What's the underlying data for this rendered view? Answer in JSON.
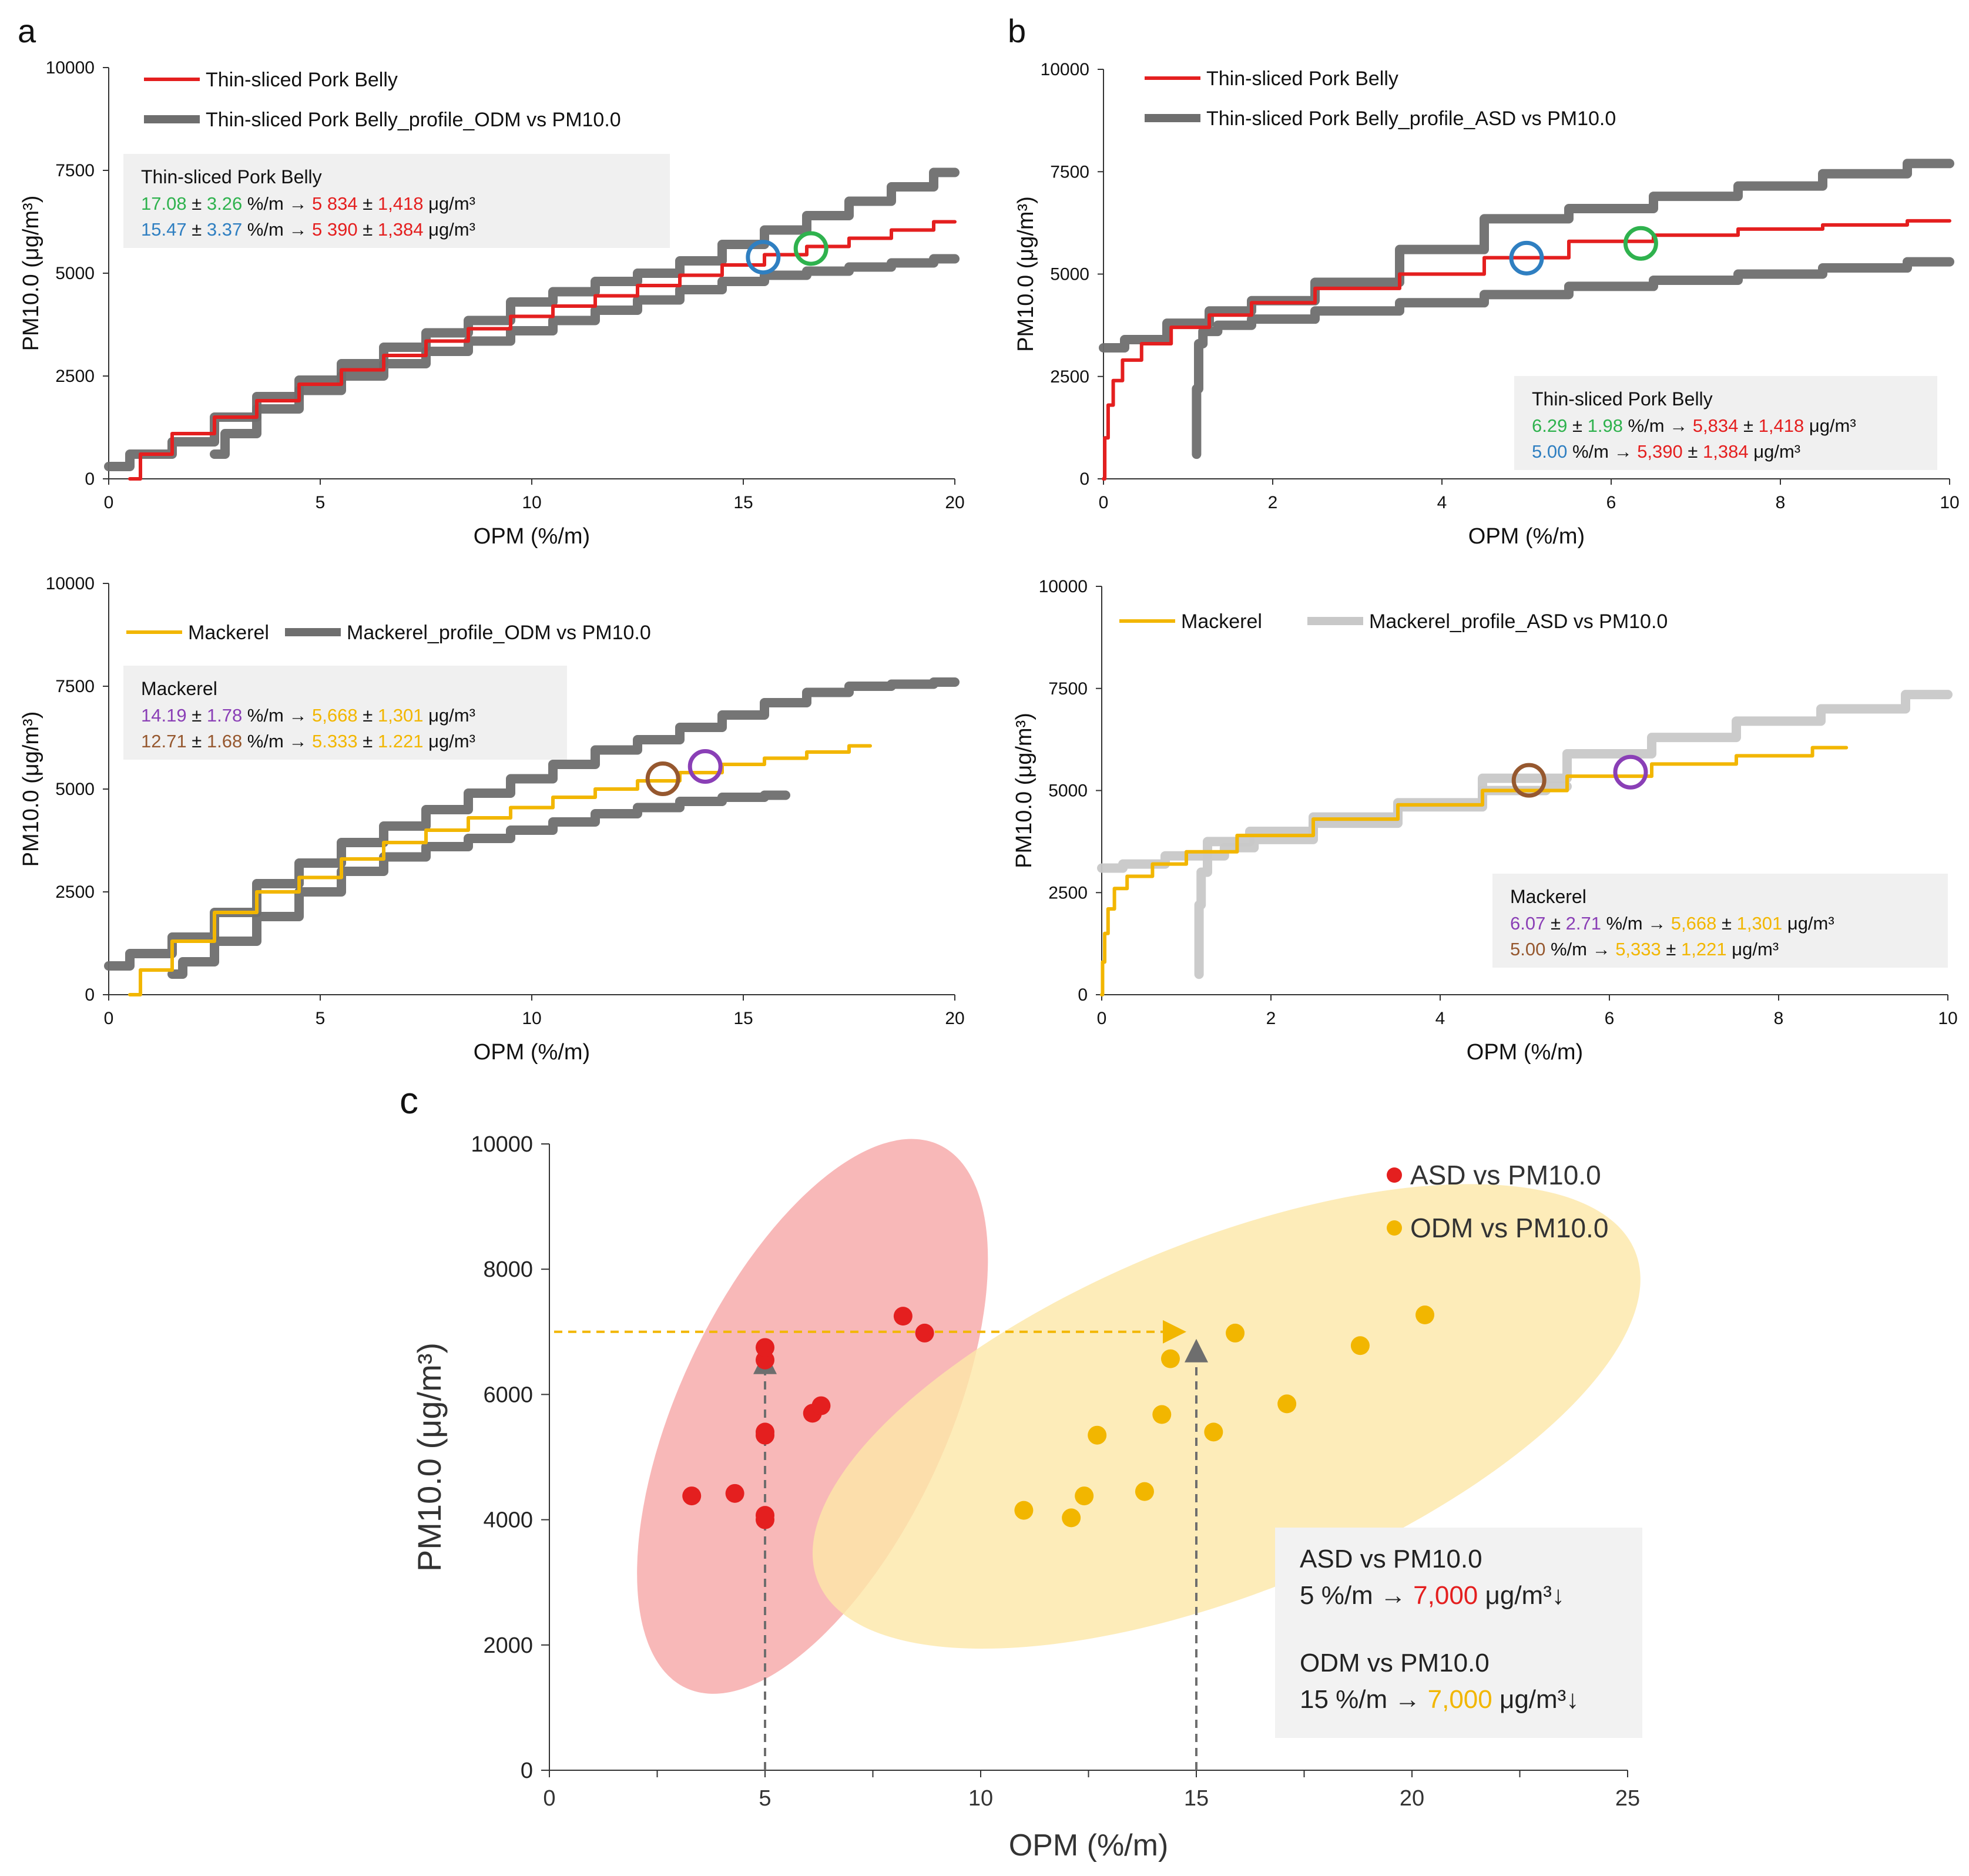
{
  "panel_letters": {
    "a": "a",
    "b": "b",
    "c": "c"
  },
  "colors": {
    "red": "#e41f1f",
    "gray": "#6e6e6e",
    "lightgray": "#c8c8c8",
    "yellow": "#f2b600",
    "green": "#2fb24e",
    "blue": "#2f7fc1",
    "purple": "#8a3fb6",
    "brown": "#96582f",
    "ellipse_red": "#f5a0a0",
    "ellipse_yellow": "#fde7a8"
  },
  "chart_data": [
    {
      "id": "a_top",
      "type": "line",
      "xlabel": "OPM (%/m)",
      "ylabel": "PM10.0 (μg/m³)",
      "xlim": [
        0,
        20
      ],
      "ylim": [
        0,
        10000
      ],
      "xticks": [
        0,
        5,
        10,
        15,
        20
      ],
      "yticks": [
        0,
        2500,
        5000,
        7500,
        10000
      ],
      "legend": [
        "Thin-sliced Pork Belly",
        "Thin-sliced Pork Belly_profile_ODM vs PM10.0"
      ],
      "box": {
        "title": "Thin-sliced Pork Belly",
        "line1": {
          "a": "17.08",
          "pm": "±",
          "b": "3.26",
          "unit": "%/m →",
          "c": "5 834",
          "pm2": "±",
          "d": "1,418",
          "u2": "μg/m³"
        },
        "line2": {
          "a": "15.47",
          "pm": "±",
          "b": "3.37",
          "unit": "%/m →",
          "c": "5 390",
          "pm2": "±",
          "d": "1,384",
          "u2": "μg/m³"
        }
      },
      "series": [
        {
          "name": "Thin-sliced Pork Belly",
          "color": "red",
          "x": [
            0.5,
            1.0,
            2.0,
            3.0,
            4.0,
            5.0,
            6.0,
            7.0,
            8.0,
            9.0,
            10.0,
            11.0,
            12.0,
            13.0,
            14.0,
            15.0,
            16.0,
            17.0,
            18.0,
            19.0,
            20.0
          ],
          "y": [
            0,
            600,
            1100,
            1500,
            1900,
            2300,
            2650,
            3000,
            3350,
            3650,
            3950,
            4200,
            4450,
            4700,
            4950,
            5200,
            5450,
            5650,
            5850,
            6050,
            6250
          ]
        },
        {
          "name": "profile upper",
          "color": "gray",
          "x": [
            0.0,
            1.0,
            2.0,
            3.0,
            4.0,
            5.0,
            6.0,
            7.0,
            8.0,
            9.0,
            10.0,
            11.0,
            12.0,
            13.0,
            14.0,
            15.0,
            16.0,
            17.0,
            18.0,
            19.0,
            20.0
          ],
          "y": [
            300,
            600,
            900,
            1500,
            2000,
            2400,
            2800,
            3200,
            3550,
            3850,
            4300,
            4550,
            4800,
            5000,
            5300,
            5700,
            6050,
            6400,
            6750,
            7100,
            7450
          ]
        },
        {
          "name": "profile lower",
          "color": "gray",
          "x": [
            2.5,
            3.0,
            4.0,
            5.0,
            6.0,
            7.0,
            8.0,
            9.0,
            10.0,
            11.0,
            12.0,
            13.0,
            14.0,
            15.0,
            16.0,
            17.0,
            18.0,
            19.0,
            20.0
          ],
          "y": [
            600,
            1100,
            1700,
            2150,
            2500,
            2800,
            3100,
            3350,
            3600,
            3850,
            4100,
            4350,
            4600,
            4800,
            4950,
            5050,
            5150,
            5250,
            5350
          ]
        }
      ],
      "markers": [
        {
          "x": 15.47,
          "y": 5390,
          "color": "blue"
        },
        {
          "x": 16.6,
          "y": 5600,
          "color": "green"
        }
      ]
    },
    {
      "id": "b_top",
      "type": "line",
      "xlabel": "OPM (%/m)",
      "ylabel": "PM10.0 (μg/m³)",
      "xlim": [
        0,
        10
      ],
      "ylim": [
        0,
        10000
      ],
      "xticks": [
        0,
        2,
        4,
        6,
        8,
        10
      ],
      "yticks": [
        0,
        2500,
        5000,
        7500,
        10000
      ],
      "legend": [
        "Thin-sliced Pork Belly",
        "Thin-sliced Pork Belly_profile_ASD vs PM10.0"
      ],
      "box": {
        "title": "Thin-sliced Pork Belly",
        "line1": {
          "a": "6.29",
          "pm": "±",
          "b": "1.98",
          "unit": "%/m →",
          "c": "5,834",
          "pm2": "±",
          "d": "1,418",
          "u2": "μg/m³"
        },
        "line2": {
          "a": "5.00",
          "unit": "%/m →",
          "c": "5,390",
          "pm2": "±",
          "d": "1,384",
          "u2": "μg/m³"
        }
      },
      "series": [
        {
          "name": "Thin-sliced Pork Belly",
          "color": "red",
          "x": [
            0.0,
            0.03,
            0.08,
            0.15,
            0.3,
            0.6,
            1.0,
            1.5,
            2.0,
            3.0,
            4.0,
            5.0,
            6.0,
            7.0,
            8.0,
            9.0,
            10.0
          ],
          "y": [
            0,
            1000,
            1800,
            2400,
            2900,
            3300,
            3700,
            4000,
            4300,
            4650,
            5000,
            5400,
            5800,
            5950,
            6100,
            6200,
            6300
          ]
        },
        {
          "name": "profile upper",
          "color": "gray",
          "x": [
            0.0,
            0.5,
            1.0,
            1.5,
            2.0,
            3.0,
            4.0,
            5.0,
            6.0,
            7.0,
            8.0,
            9.0,
            10.0
          ],
          "y": [
            3200,
            3400,
            3800,
            4100,
            4350,
            4800,
            5600,
            6350,
            6600,
            6900,
            7150,
            7450,
            7700
          ]
        },
        {
          "name": "profile lower",
          "color": "gray",
          "x": [
            1.1,
            1.1,
            1.15,
            1.2,
            1.5,
            2.0,
            3.0,
            4.0,
            5.0,
            6.0,
            7.0,
            8.0,
            9.0,
            10.0
          ],
          "y": [
            600,
            2200,
            3300,
            3600,
            3750,
            3900,
            4100,
            4300,
            4500,
            4700,
            4850,
            5000,
            5150,
            5300
          ]
        }
      ],
      "markers": [
        {
          "x": 5.0,
          "y": 5390,
          "color": "blue"
        },
        {
          "x": 6.35,
          "y": 5750,
          "color": "green"
        }
      ]
    },
    {
      "id": "a_bottom",
      "type": "line",
      "xlabel": "OPM (%/m)",
      "ylabel": "PM10.0 (μg/m³)",
      "xlim": [
        0,
        20
      ],
      "ylim": [
        0,
        10000
      ],
      "xticks": [
        0,
        5,
        10,
        15,
        20
      ],
      "yticks": [
        0,
        2500,
        5000,
        7500,
        10000
      ],
      "legend": [
        "Mackerel",
        "Mackerel_profile_ODM vs PM10.0"
      ],
      "box": {
        "title": "Mackerel",
        "line1": {
          "a": "14.19",
          "pm": "±",
          "b": "1.78",
          "unit": "%/m →",
          "c": "5,668",
          "pm2": "±",
          "d": "1,301",
          "u2": "μg/m³"
        },
        "line2": {
          "a": "12.71",
          "pm": "±",
          "b": "1.68",
          "unit": "%/m →",
          "c": "5.333",
          "pm2": "±",
          "d": "1.221",
          "u2": "μg/m³"
        }
      },
      "series": [
        {
          "name": "Mackerel",
          "color": "yellow",
          "x": [
            0.5,
            1.0,
            2.0,
            3.0,
            4.0,
            5.0,
            6.0,
            7.0,
            8.0,
            9.0,
            10.0,
            11.0,
            12.0,
            13.0,
            14.0,
            15.0,
            16.0,
            17.0,
            18.0
          ],
          "y": [
            0,
            600,
            1300,
            2000,
            2500,
            2850,
            3300,
            3700,
            4000,
            4300,
            4550,
            4800,
            5000,
            5200,
            5400,
            5600,
            5750,
            5900,
            6050
          ]
        },
        {
          "name": "profile upper",
          "color": "gray",
          "x": [
            0.0,
            1.0,
            2.0,
            3.0,
            4.0,
            5.0,
            6.0,
            7.0,
            8.0,
            9.0,
            10.0,
            11.0,
            12.0,
            13.0,
            14.0,
            15.0,
            16.0,
            17.0,
            18.0,
            19.0,
            20.0
          ],
          "y": [
            700,
            1000,
            1400,
            2000,
            2700,
            3200,
            3700,
            4100,
            4500,
            4900,
            5250,
            5600,
            5950,
            6200,
            6500,
            6800,
            7100,
            7350,
            7500,
            7550,
            7600
          ]
        },
        {
          "name": "profile lower",
          "color": "gray",
          "x": [
            1.5,
            2.0,
            3.0,
            4.0,
            5.0,
            6.0,
            7.0,
            8.0,
            9.0,
            10.0,
            11.0,
            12.0,
            13.0,
            14.0,
            15.0,
            16.0
          ],
          "y": [
            500,
            800,
            1300,
            1900,
            2500,
            3000,
            3350,
            3600,
            3800,
            4000,
            4200,
            4400,
            4550,
            4700,
            4800,
            4850
          ]
        }
      ],
      "markers": [
        {
          "x": 13.1,
          "y": 5250,
          "color": "brown"
        },
        {
          "x": 14.1,
          "y": 5550,
          "color": "purple"
        }
      ]
    },
    {
      "id": "b_bottom",
      "type": "line",
      "xlabel": "OPM (%/m)",
      "ylabel": "PM10.0 (μg/m³)",
      "xlim": [
        0,
        10
      ],
      "ylim": [
        0,
        10000
      ],
      "xticks": [
        0,
        2,
        4,
        6,
        8,
        10
      ],
      "yticks": [
        0,
        2500,
        5000,
        7500,
        10000
      ],
      "legend": [
        "Mackerel",
        "Mackerel_profile_ASD vs PM10.0"
      ],
      "box": {
        "title": "Mackerel",
        "line1": {
          "a": "6.07",
          "pm": "±",
          "b": "2.71",
          "unit": "%/m →",
          "c": "5,668",
          "pm2": "±",
          "d": "1,301",
          "u2": "μg/m³"
        },
        "line2": {
          "a": "5.00",
          "unit": "%/m →",
          "c": "5,333",
          "pm2": "±",
          "d": "1,221",
          "u2": "μg/m³"
        }
      },
      "series": [
        {
          "name": "Mackerel",
          "color": "yellow",
          "x": [
            0.0,
            0.02,
            0.05,
            0.1,
            0.2,
            0.4,
            0.8,
            1.2,
            2.0,
            3.0,
            4.0,
            5.0,
            6.0,
            7.0,
            8.0,
            8.8
          ],
          "y": [
            0,
            800,
            1500,
            2100,
            2600,
            2900,
            3200,
            3500,
            3900,
            4300,
            4650,
            5000,
            5350,
            5650,
            5850,
            6050
          ]
        },
        {
          "name": "profile upper",
          "color": "lightgray",
          "x": [
            0.0,
            0.5,
            1.0,
            1.5,
            2.0,
            3.0,
            4.0,
            5.0,
            6.0,
            7.0,
            8.0,
            9.0,
            10.0
          ],
          "y": [
            3100,
            3200,
            3400,
            3750,
            4000,
            4350,
            4700,
            5300,
            5900,
            6300,
            6700,
            7000,
            7350
          ]
        },
        {
          "name": "profile lower",
          "color": "lightgray",
          "x": [
            1.15,
            1.15,
            1.2,
            1.3,
            1.6,
            2.0,
            3.0,
            4.0,
            5.0,
            5.5
          ],
          "y": [
            500,
            2200,
            3000,
            3400,
            3600,
            3800,
            4200,
            4600,
            5000,
            5100
          ]
        }
      ],
      "markers": [
        {
          "x": 5.05,
          "y": 5250,
          "color": "brown"
        },
        {
          "x": 6.25,
          "y": 5450,
          "color": "purple"
        }
      ]
    },
    {
      "id": "c",
      "type": "scatter",
      "xlabel": "OPM (%/m)",
      "ylabel": "PM10.0 (μg/m³)",
      "xlim": [
        0,
        25
      ],
      "ylim": [
        0,
        10000
      ],
      "xticks": [
        0,
        5,
        10,
        15,
        20,
        25
      ],
      "yticks": [
        0,
        2000,
        4000,
        6000,
        8000,
        10000
      ],
      "series": [
        {
          "name": "ASD vs PM10.0",
          "color": "red",
          "x": [
            3.3,
            4.3,
            5.0,
            5.0,
            5.0,
            5.0,
            5.0,
            5.0,
            6.1,
            6.3,
            8.2,
            8.7
          ],
          "y": [
            4380,
            4420,
            4000,
            4070,
            5350,
            5400,
            6550,
            6750,
            5700,
            5820,
            7250,
            6980
          ]
        },
        {
          "name": "ODM vs PM10.0",
          "color": "yellow",
          "x": [
            11.0,
            12.1,
            12.4,
            12.7,
            13.8,
            14.2,
            14.4,
            15.4,
            15.9,
            17.1,
            18.8,
            20.3
          ],
          "y": [
            4150,
            4030,
            4380,
            5350,
            4450,
            5680,
            6570,
            5400,
            6980,
            5850,
            6780,
            7270
          ]
        }
      ],
      "box": {
        "l1_title": "ASD vs PM10.0",
        "l1_a": "5 %/m →",
        "l1_b": "7,000",
        "l1_c": "μg/m³↓",
        "l2_title": "ODM vs PM10.0",
        "l2_a": "15 %/m →",
        "l2_b": "7,000",
        "l2_c": "μg/m³↓"
      },
      "guides": {
        "y_level": 7000,
        "x_from": 5,
        "x_to": 15
      }
    }
  ]
}
